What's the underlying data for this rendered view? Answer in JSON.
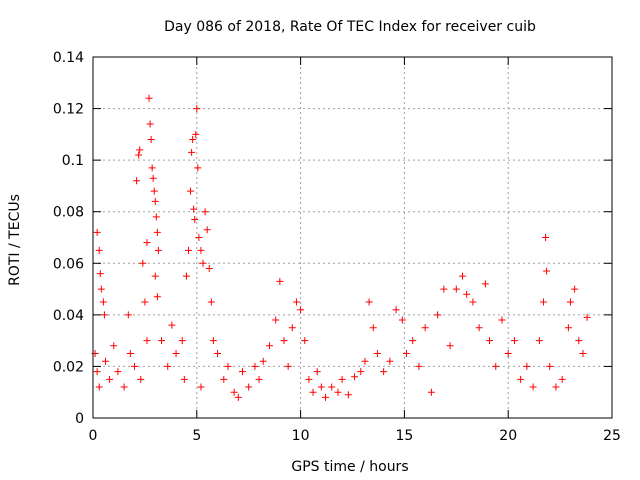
{
  "chart_data": {
    "type": "scatter",
    "title": "Day 086 of 2018, Rate Of TEC Index for receiver cuib",
    "xlabel": "GPS time / hours",
    "ylabel": "ROTI / TECUs",
    "xlim": [
      0,
      25
    ],
    "ylim": [
      0,
      0.14
    ],
    "x_ticks": [
      0,
      5,
      10,
      15,
      20,
      25
    ],
    "x_tick_labels": [
      "0",
      "5",
      "10",
      "15",
      "20",
      "25"
    ],
    "y_ticks": [
      0,
      0.02,
      0.04,
      0.06,
      0.08,
      0.1,
      0.12,
      0.14
    ],
    "y_tick_labels": [
      "0",
      "0.02",
      "0.04",
      "0.06",
      "0.08",
      "0.1",
      "0.12",
      "0.14"
    ],
    "grid": true,
    "marker": "+",
    "marker_color": "#ff0000",
    "series": [
      {
        "name": "ROTI",
        "points": [
          [
            0.2,
            0.072
          ],
          [
            0.3,
            0.065
          ],
          [
            0.35,
            0.056
          ],
          [
            0.4,
            0.05
          ],
          [
            0.5,
            0.045
          ],
          [
            0.55,
            0.04
          ],
          [
            0.1,
            0.025
          ],
          [
            0.2,
            0.018
          ],
          [
            0.3,
            0.012
          ],
          [
            0.6,
            0.022
          ],
          [
            0.8,
            0.015
          ],
          [
            1.0,
            0.028
          ],
          [
            1.2,
            0.018
          ],
          [
            1.5,
            0.012
          ],
          [
            1.7,
            0.04
          ],
          [
            1.8,
            0.025
          ],
          [
            2.0,
            0.02
          ],
          [
            2.1,
            0.092
          ],
          [
            2.2,
            0.102
          ],
          [
            2.25,
            0.104
          ],
          [
            2.4,
            0.06
          ],
          [
            2.5,
            0.045
          ],
          [
            2.6,
            0.068
          ],
          [
            2.7,
            0.124
          ],
          [
            2.75,
            0.114
          ],
          [
            2.8,
            0.108
          ],
          [
            2.85,
            0.097
          ],
          [
            2.9,
            0.093
          ],
          [
            2.95,
            0.088
          ],
          [
            3.0,
            0.084
          ],
          [
            3.05,
            0.078
          ],
          [
            3.1,
            0.072
          ],
          [
            3.15,
            0.065
          ],
          [
            3.0,
            0.055
          ],
          [
            3.1,
            0.047
          ],
          [
            2.6,
            0.03
          ],
          [
            2.3,
            0.015
          ],
          [
            3.3,
            0.03
          ],
          [
            3.6,
            0.02
          ],
          [
            3.8,
            0.036
          ],
          [
            4.0,
            0.025
          ],
          [
            4.3,
            0.03
          ],
          [
            4.5,
            0.055
          ],
          [
            4.6,
            0.065
          ],
          [
            4.7,
            0.088
          ],
          [
            4.75,
            0.103
          ],
          [
            4.8,
            0.108
          ],
          [
            4.85,
            0.081
          ],
          [
            4.9,
            0.077
          ],
          [
            4.95,
            0.11
          ],
          [
            5.0,
            0.12
          ],
          [
            5.05,
            0.097
          ],
          [
            5.1,
            0.07
          ],
          [
            5.2,
            0.065
          ],
          [
            5.3,
            0.06
          ],
          [
            5.4,
            0.08
          ],
          [
            5.5,
            0.073
          ],
          [
            5.6,
            0.058
          ],
          [
            5.7,
            0.045
          ],
          [
            5.8,
            0.03
          ],
          [
            4.4,
            0.015
          ],
          [
            5.2,
            0.012
          ],
          [
            6.0,
            0.025
          ],
          [
            6.3,
            0.015
          ],
          [
            6.5,
            0.02
          ],
          [
            6.8,
            0.01
          ],
          [
            7.0,
            0.008
          ],
          [
            7.2,
            0.018
          ],
          [
            7.5,
            0.012
          ],
          [
            7.8,
            0.02
          ],
          [
            8.0,
            0.015
          ],
          [
            8.2,
            0.022
          ],
          [
            8.5,
            0.028
          ],
          [
            8.8,
            0.038
          ],
          [
            9.0,
            0.053
          ],
          [
            9.2,
            0.03
          ],
          [
            9.4,
            0.02
          ],
          [
            9.6,
            0.035
          ],
          [
            9.8,
            0.045
          ],
          [
            10.0,
            0.042
          ],
          [
            10.2,
            0.03
          ],
          [
            10.4,
            0.015
          ],
          [
            10.6,
            0.01
          ],
          [
            10.8,
            0.018
          ],
          [
            11.0,
            0.012
          ],
          [
            11.2,
            0.008
          ],
          [
            11.5,
            0.012
          ],
          [
            11.8,
            0.01
          ],
          [
            12.0,
            0.015
          ],
          [
            12.3,
            0.009
          ],
          [
            12.6,
            0.016
          ],
          [
            12.9,
            0.018
          ],
          [
            13.1,
            0.022
          ],
          [
            13.3,
            0.045
          ],
          [
            13.5,
            0.035
          ],
          [
            13.7,
            0.025
          ],
          [
            14.0,
            0.018
          ],
          [
            14.3,
            0.022
          ],
          [
            14.6,
            0.042
          ],
          [
            14.9,
            0.038
          ],
          [
            15.1,
            0.025
          ],
          [
            15.4,
            0.03
          ],
          [
            15.7,
            0.02
          ],
          [
            16.0,
            0.035
          ],
          [
            16.3,
            0.01
          ],
          [
            16.6,
            0.04
          ],
          [
            16.9,
            0.05
          ],
          [
            17.2,
            0.028
          ],
          [
            17.5,
            0.05
          ],
          [
            17.8,
            0.055
          ],
          [
            18.0,
            0.048
          ],
          [
            18.3,
            0.045
          ],
          [
            18.6,
            0.035
          ],
          [
            18.9,
            0.052
          ],
          [
            19.1,
            0.03
          ],
          [
            19.4,
            0.02
          ],
          [
            19.7,
            0.038
          ],
          [
            20.0,
            0.025
          ],
          [
            20.3,
            0.03
          ],
          [
            20.6,
            0.015
          ],
          [
            20.9,
            0.02
          ],
          [
            21.2,
            0.012
          ],
          [
            21.5,
            0.03
          ],
          [
            21.7,
            0.045
          ],
          [
            21.8,
            0.07
          ],
          [
            21.85,
            0.057
          ],
          [
            22.0,
            0.02
          ],
          [
            22.3,
            0.012
          ],
          [
            22.6,
            0.015
          ],
          [
            22.9,
            0.035
          ],
          [
            23.0,
            0.045
          ],
          [
            23.2,
            0.05
          ],
          [
            23.4,
            0.03
          ],
          [
            23.6,
            0.025
          ],
          [
            23.8,
            0.039
          ]
        ]
      }
    ]
  }
}
